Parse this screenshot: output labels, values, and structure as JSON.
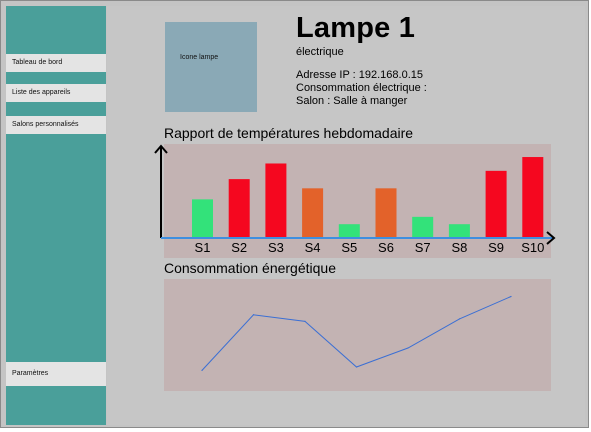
{
  "sidebar": {
    "items": [
      {
        "label": "Tableau de bord"
      },
      {
        "label": "Liste des appareils"
      },
      {
        "label": "Salons personnalisés"
      }
    ],
    "settings_label": "Paramètres"
  },
  "device": {
    "icon_label": "Icone lampe",
    "title": "Lampe 1",
    "type": "électrique",
    "ip": "Adresse IP : 192.168.0.15",
    "consumption": "Consommation électrique :",
    "room": "Salon : Salle à manger"
  },
  "temperature_report": {
    "title": "Rapport de températures hebdomadaire"
  },
  "energy": {
    "title": "Consommation énergétique"
  },
  "colors": {
    "green": "#33e27a",
    "red": "#f5071f",
    "orange": "#e3622a",
    "axis_blue": "#3d8fe0",
    "line_blue": "#3b6fd4"
  },
  "chart_data": [
    {
      "type": "bar",
      "categories": [
        "S1",
        "S2",
        "S3",
        "S4",
        "S5",
        "S6",
        "S7",
        "S8",
        "S9",
        "S10"
      ],
      "values": [
        42,
        64,
        81,
        54,
        15,
        54,
        23,
        15,
        73,
        88
      ],
      "bar_colors": [
        "green",
        "red",
        "red",
        "orange",
        "green",
        "orange",
        "green",
        "green",
        "red",
        "red"
      ],
      "ylim": [
        0,
        100
      ]
    },
    {
      "type": "line",
      "x": [
        1,
        2,
        3,
        4,
        5,
        6,
        7
      ],
      "values": [
        8,
        75,
        67,
        12,
        35,
        70,
        97
      ],
      "ylim": [
        0,
        100
      ]
    }
  ]
}
